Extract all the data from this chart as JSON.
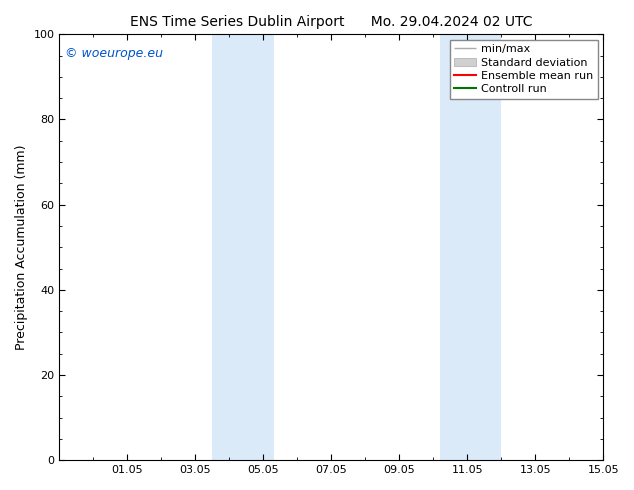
{
  "title_left": "ENS Time Series Dublin Airport",
  "title_right": "Mo. 29.04.2024 02 UTC",
  "ylabel": "Precipitation Accumulation (mm)",
  "ylim": [
    0,
    100
  ],
  "yticks": [
    0,
    20,
    40,
    60,
    80,
    100
  ],
  "xtick_labels": [
    "01.05",
    "03.05",
    "05.05",
    "07.05",
    "09.05",
    "11.05",
    "13.05",
    "15.05"
  ],
  "xtick_positions": [
    2,
    4,
    6,
    8,
    10,
    12,
    14,
    16
  ],
  "xlim": [
    0,
    16
  ],
  "shade_regions": [
    {
      "xmin": 4.5,
      "xmax": 6.3
    },
    {
      "xmin": 11.2,
      "xmax": 13.0
    }
  ],
  "shade_color": "#daeaf8",
  "background_color": "#ffffff",
  "copyright_text": "© woeurope.eu",
  "copyright_color": "#0055cc",
  "legend_entries": [
    {
      "label": "min/max",
      "color": "#aaaaaa",
      "style": "errbar"
    },
    {
      "label": "Standard deviation",
      "color": "#cccccc",
      "style": "band"
    },
    {
      "label": "Ensemble mean run",
      "color": "#ff0000",
      "style": "line"
    },
    {
      "label": "Controll run",
      "color": "#007700",
      "style": "line"
    }
  ],
  "title_fontsize": 10,
  "tick_fontsize": 8,
  "ylabel_fontsize": 9,
  "legend_fontsize": 8,
  "copyright_fontsize": 9
}
